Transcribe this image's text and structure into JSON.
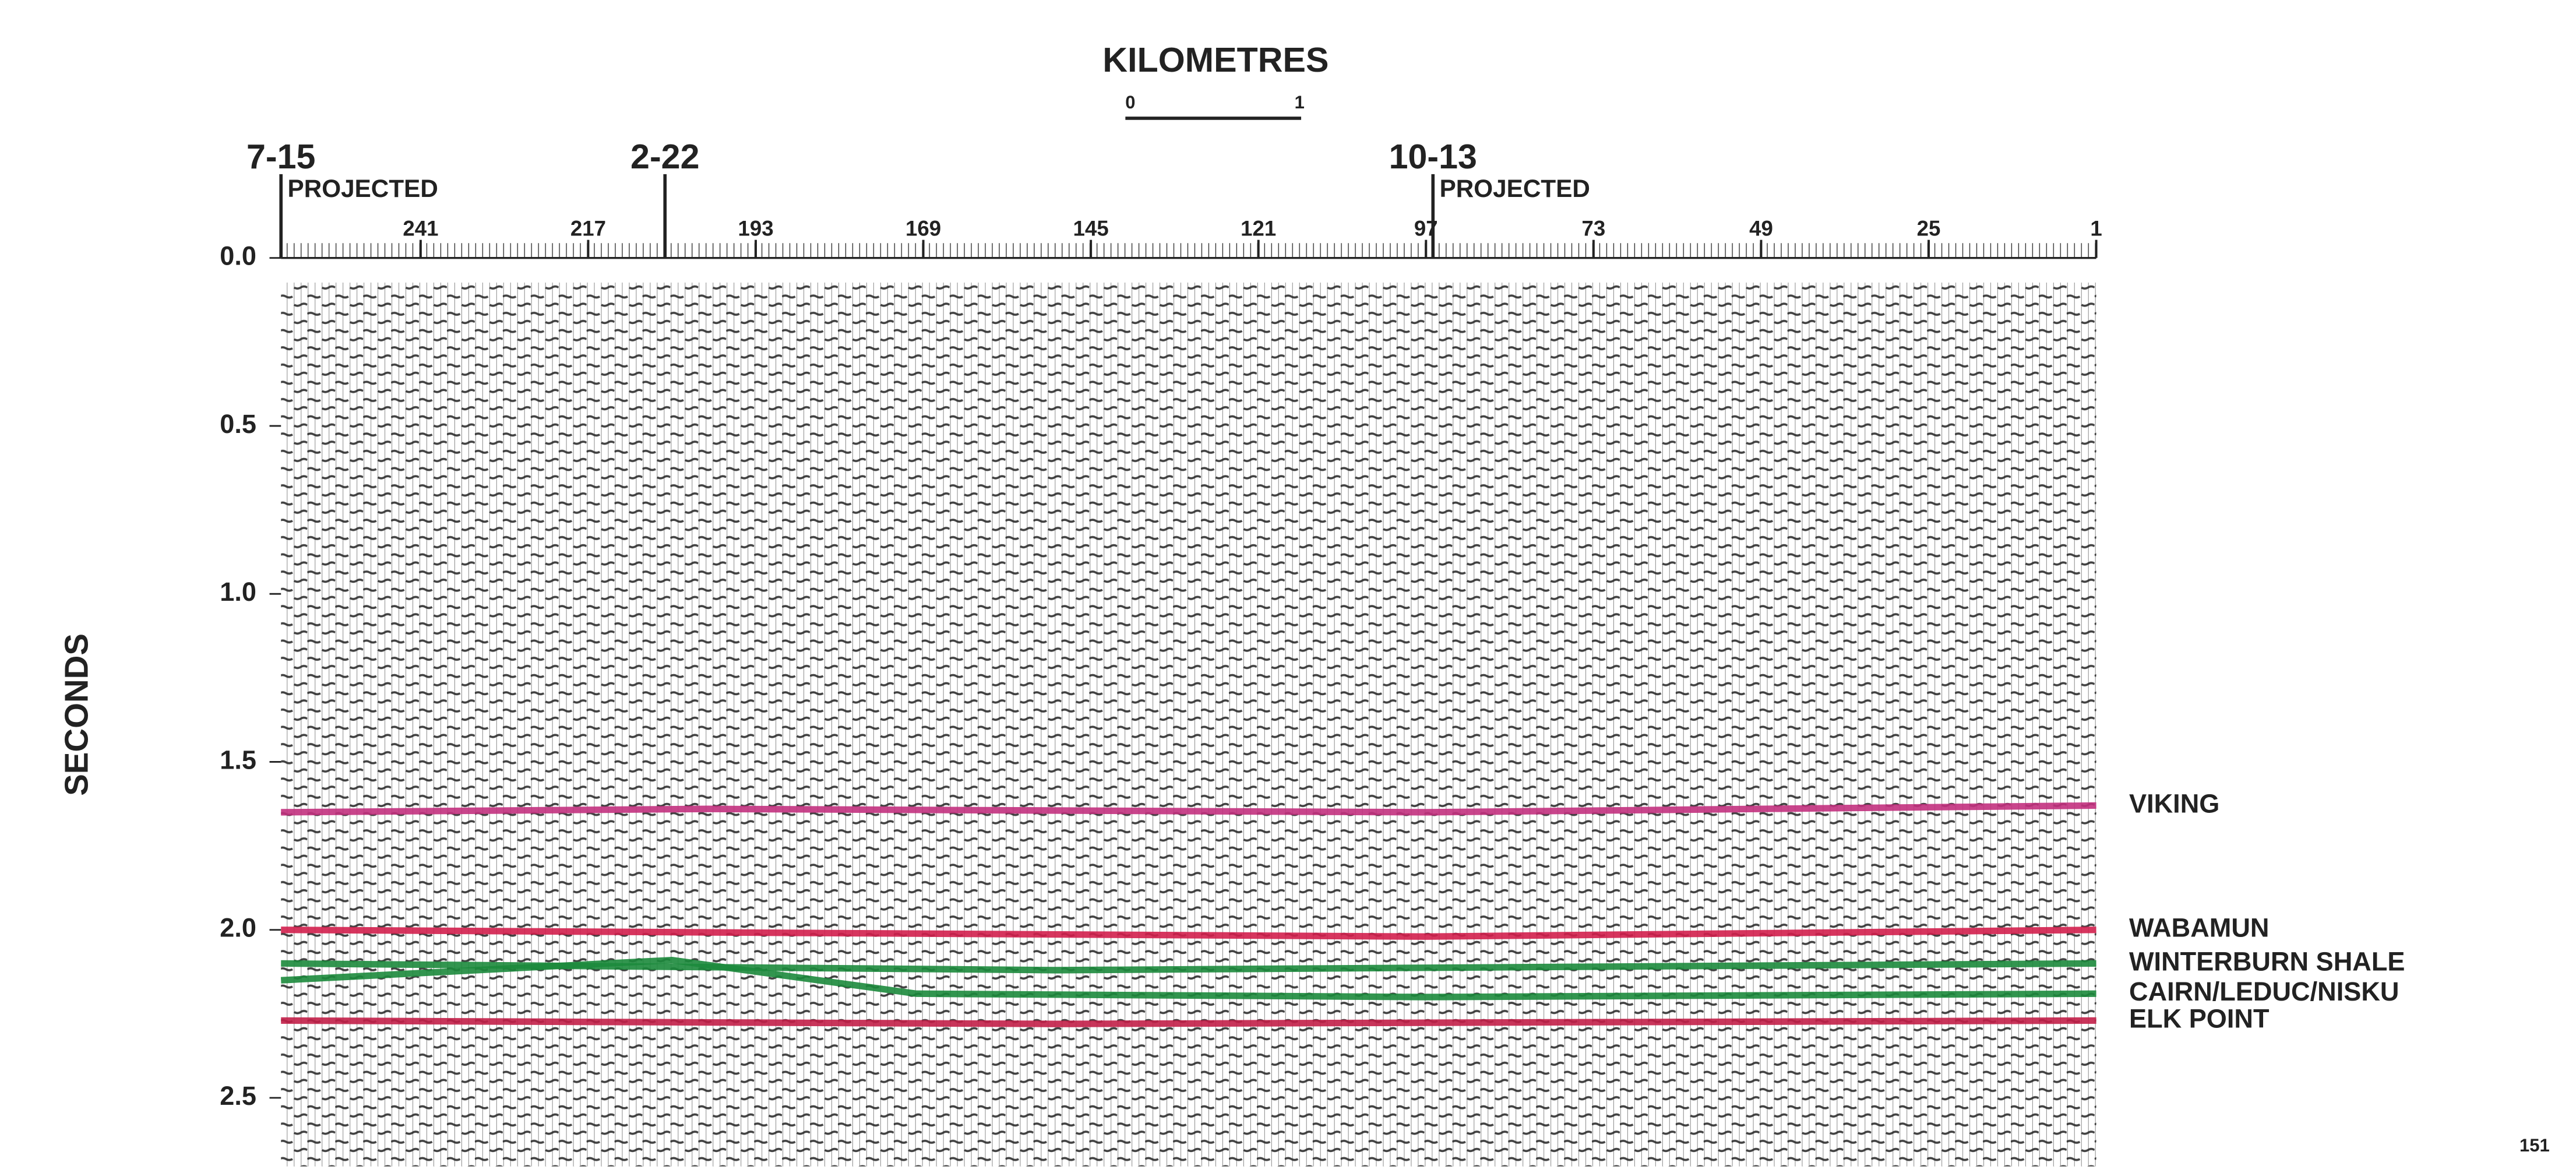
{
  "chart_data": {
    "type": "seismic-section",
    "title": "KILOMETRES",
    "scale_bar_labels": [
      "0",
      "1"
    ],
    "y_label": "SECONDS",
    "page_number": "151",
    "xlim": [
      261,
      1
    ],
    "xticks": [
      241,
      217,
      193,
      169,
      145,
      121,
      97,
      73,
      49,
      25,
      1
    ],
    "ylim": [
      0,
      2.7
    ],
    "yticks": [
      {
        "value": 0,
        "label": "0.0"
      },
      0.5,
      {
        "value": 1,
        "label": "1.0"
      },
      1.5,
      {
        "value": 2,
        "label": "2.0"
      },
      2.5
    ],
    "wells": [
      {
        "name": "7-15",
        "trace": 261,
        "note": "PROJECTED"
      },
      {
        "name": "2-22",
        "trace": 206
      },
      {
        "name": "10-13",
        "trace": 96,
        "note": "PROJECTED"
      }
    ],
    "series": [
      {
        "name": "VIKING",
        "color": "#c2317e",
        "x": [
          261,
          200,
          97,
          1
        ],
        "values": [
          1.65,
          1.64,
          1.65,
          1.63
        ]
      },
      {
        "name": "WABAMUN",
        "color": "#d21f4c",
        "x": [
          261,
          180,
          97,
          1
        ],
        "values": [
          2.0,
          2.01,
          2.02,
          2.0
        ]
      },
      {
        "name": "WINTERBURN SHALE",
        "color": "#1c8a3c",
        "x": [
          261,
          150,
          1
        ],
        "values": [
          2.1,
          2.12,
          2.1
        ]
      },
      {
        "name": "CAIRN/LEDUC/NISKU",
        "color": "#1c8a3c",
        "x": [
          261,
          205,
          170,
          97,
          1
        ],
        "values": [
          2.15,
          2.09,
          2.19,
          2.2,
          2.19
        ]
      },
      {
        "name": "ELK POINT",
        "color": "#c21f48",
        "x": [
          261,
          150,
          1
        ],
        "values": [
          2.27,
          2.28,
          2.27
        ]
      }
    ]
  }
}
